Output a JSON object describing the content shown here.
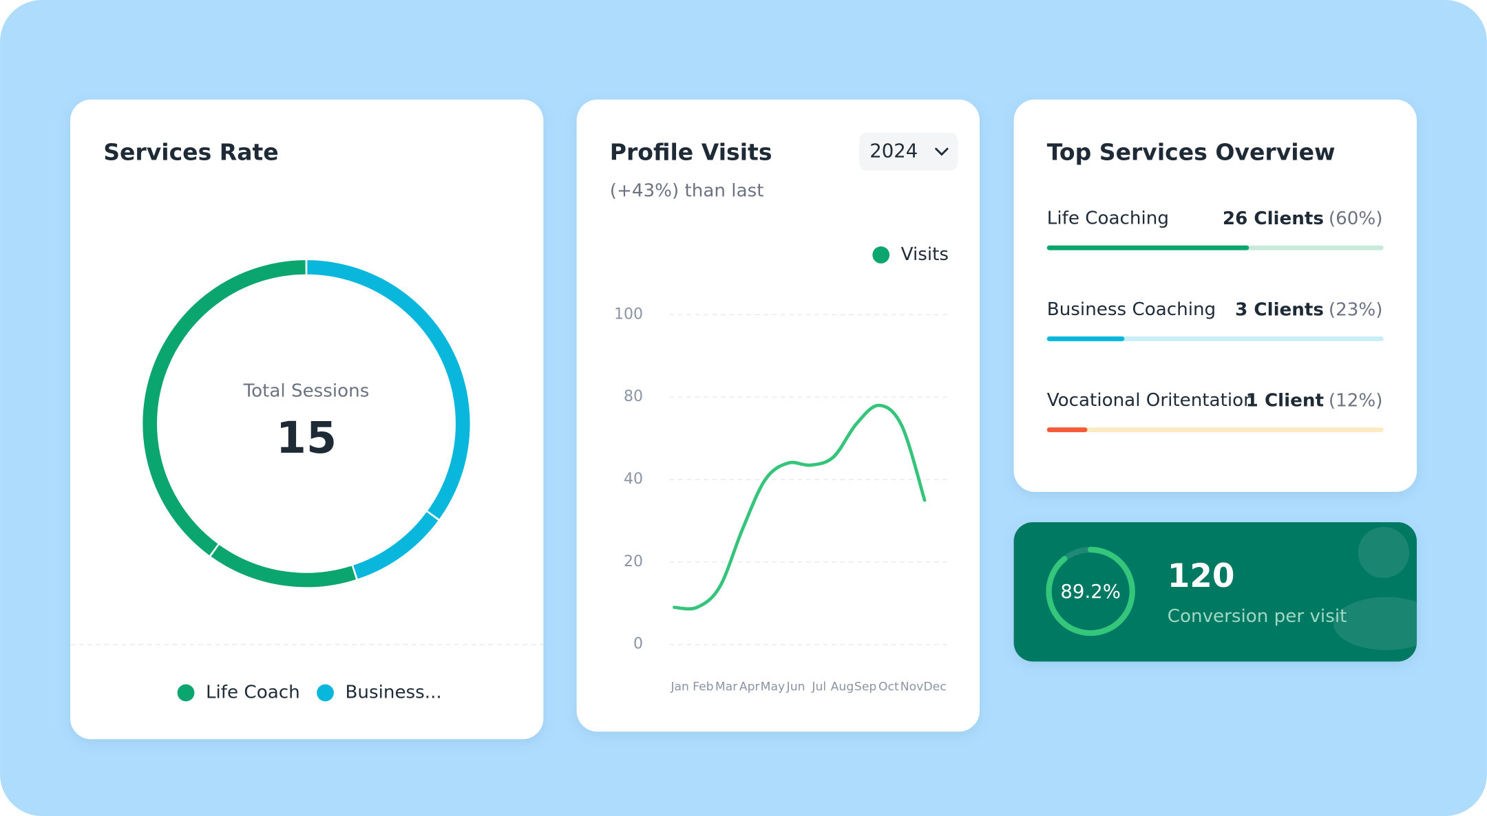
{
  "services_rate": {
    "title": "Services Rate",
    "center_label": "Total Sessions",
    "total": 15,
    "chart_data": {
      "type": "donut",
      "values": [
        35,
        10,
        15,
        40
      ],
      "colors": [
        "#08b7db",
        "#08b7db",
        "#0ba56f",
        "#0ba56f"
      ],
      "legend": [
        {
          "name": "Life Coach",
          "color": "#0ba56f"
        },
        {
          "name": "Business...",
          "color": "#08b7db"
        }
      ]
    }
  },
  "profile_visits": {
    "title": "Profile Visits",
    "subtitle": "(+43%) than last",
    "year": "2024",
    "chart_data": {
      "type": "line",
      "categories": [
        "Jan",
        "Feb",
        "Mar",
        "Apr",
        "May",
        "Jun",
        "Jul",
        "Aug",
        "Sep",
        "Oct",
        "Nov",
        "Dec"
      ],
      "series": [
        {
          "name": "Visits",
          "color": "#36c47c",
          "legend_color": "#0ba56f",
          "values": [
            9,
            9,
            14,
            28,
            40,
            48,
            47,
            51,
            67,
            76,
            66,
            35
          ]
        }
      ],
      "ylim": [
        0,
        100
      ],
      "yticks": [
        0,
        20,
        40,
        80,
        100
      ],
      "grid": true
    }
  },
  "top_services": {
    "title": "Top Services Overview",
    "items": [
      {
        "name": "Life Coaching",
        "clients": "26 Clients",
        "percent": 60,
        "percent_label": "(60%)",
        "color": "#0ba56f",
        "track": "#c8eadb"
      },
      {
        "name": "Business Coaching",
        "clients": "3 Clients",
        "percent": 23,
        "percent_label": "(23%)",
        "color": "#08b7db",
        "track": "#c9eef8"
      },
      {
        "name": "Vocational Oritentation",
        "clients": "1 Client",
        "percent": 12,
        "percent_label": "(12%)",
        "color": "#f45a37",
        "track": "#fbeac2"
      }
    ]
  },
  "conversion": {
    "percent": 89.2,
    "percent_label": "89.2%",
    "count": 120,
    "label": "Conversion per visit"
  }
}
